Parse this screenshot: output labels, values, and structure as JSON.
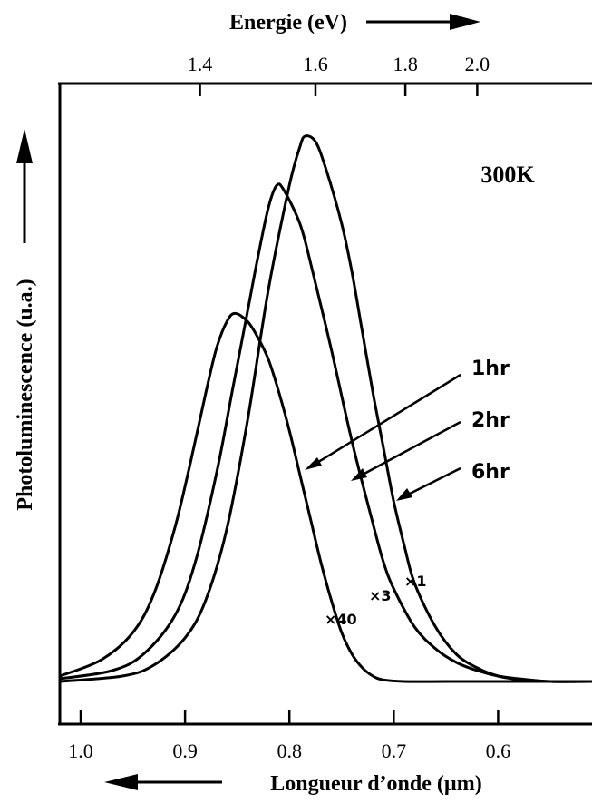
{
  "chart_data": {
    "type": "line",
    "top_axis": {
      "label": "Energie (eV)",
      "tick_labels": [
        "1.4",
        "1.6",
        "1.8",
        "2.0"
      ],
      "ticks_ev": [
        1.4,
        1.6,
        1.8,
        2.0
      ]
    },
    "bottom_axis": {
      "label": "Longueur d’onde (µm)",
      "tick_labels": [
        "1.0",
        "0.9",
        "0.8",
        "0.7",
        "0.6"
      ],
      "ticks_um": [
        1.0,
        0.9,
        0.8,
        0.7,
        0.6
      ],
      "xlim": [
        1.02,
        0.51
      ],
      "direction": "decreasing to the right"
    },
    "left_axis": {
      "label": "Photoluminescence (u.a.)",
      "ylim": [
        0,
        1.05
      ]
    },
    "annotation": "300K",
    "series": [
      {
        "name": "1hr",
        "scale_label": "×40",
        "x": [
          1.02,
          0.98,
          0.95,
          0.93,
          0.91,
          0.895,
          0.88,
          0.87,
          0.86,
          0.852,
          0.84,
          0.83,
          0.82,
          0.81,
          0.8,
          0.79,
          0.78,
          0.77,
          0.76,
          0.75,
          0.74,
          0.73,
          0.72,
          0.71,
          0.69,
          0.65,
          0.6,
          0.55,
          0.51
        ],
        "y": [
          0.01,
          0.04,
          0.09,
          0.16,
          0.28,
          0.4,
          0.53,
          0.61,
          0.66,
          0.675,
          0.66,
          0.63,
          0.59,
          0.53,
          0.46,
          0.38,
          0.3,
          0.22,
          0.15,
          0.09,
          0.05,
          0.025,
          0.01,
          0.003,
          0.0,
          0.0,
          0.0,
          0.0,
          0.0
        ]
      },
      {
        "name": "2hr",
        "scale_label": "×3",
        "x": [
          1.02,
          0.97,
          0.94,
          0.91,
          0.89,
          0.87,
          0.855,
          0.84,
          0.83,
          0.82,
          0.812,
          0.805,
          0.79,
          0.78,
          0.76,
          0.74,
          0.72,
          0.71,
          0.7,
          0.68,
          0.66,
          0.64,
          0.62,
          0.6,
          0.58,
          0.55,
          0.51
        ],
        "y": [
          0.005,
          0.02,
          0.05,
          0.12,
          0.22,
          0.38,
          0.53,
          0.68,
          0.78,
          0.87,
          0.91,
          0.9,
          0.84,
          0.77,
          0.61,
          0.44,
          0.29,
          0.22,
          0.17,
          0.1,
          0.06,
          0.035,
          0.02,
          0.01,
          0.005,
          0.0,
          0.0
        ]
      },
      {
        "name": "6hr",
        "scale_label": "×1",
        "x": [
          1.02,
          0.96,
          0.93,
          0.9,
          0.88,
          0.86,
          0.84,
          0.82,
          0.8,
          0.79,
          0.785,
          0.775,
          0.765,
          0.75,
          0.74,
          0.73,
          0.72,
          0.71,
          0.7,
          0.69,
          0.68,
          0.66,
          0.64,
          0.62,
          0.6,
          0.58,
          0.55,
          0.51
        ],
        "y": [
          0.0,
          0.01,
          0.03,
          0.08,
          0.15,
          0.28,
          0.48,
          0.72,
          0.91,
          0.98,
          1.0,
          0.99,
          0.94,
          0.84,
          0.75,
          0.64,
          0.53,
          0.43,
          0.33,
          0.25,
          0.18,
          0.1,
          0.05,
          0.025,
          0.01,
          0.004,
          0.0,
          0.0
        ]
      }
    ]
  }
}
